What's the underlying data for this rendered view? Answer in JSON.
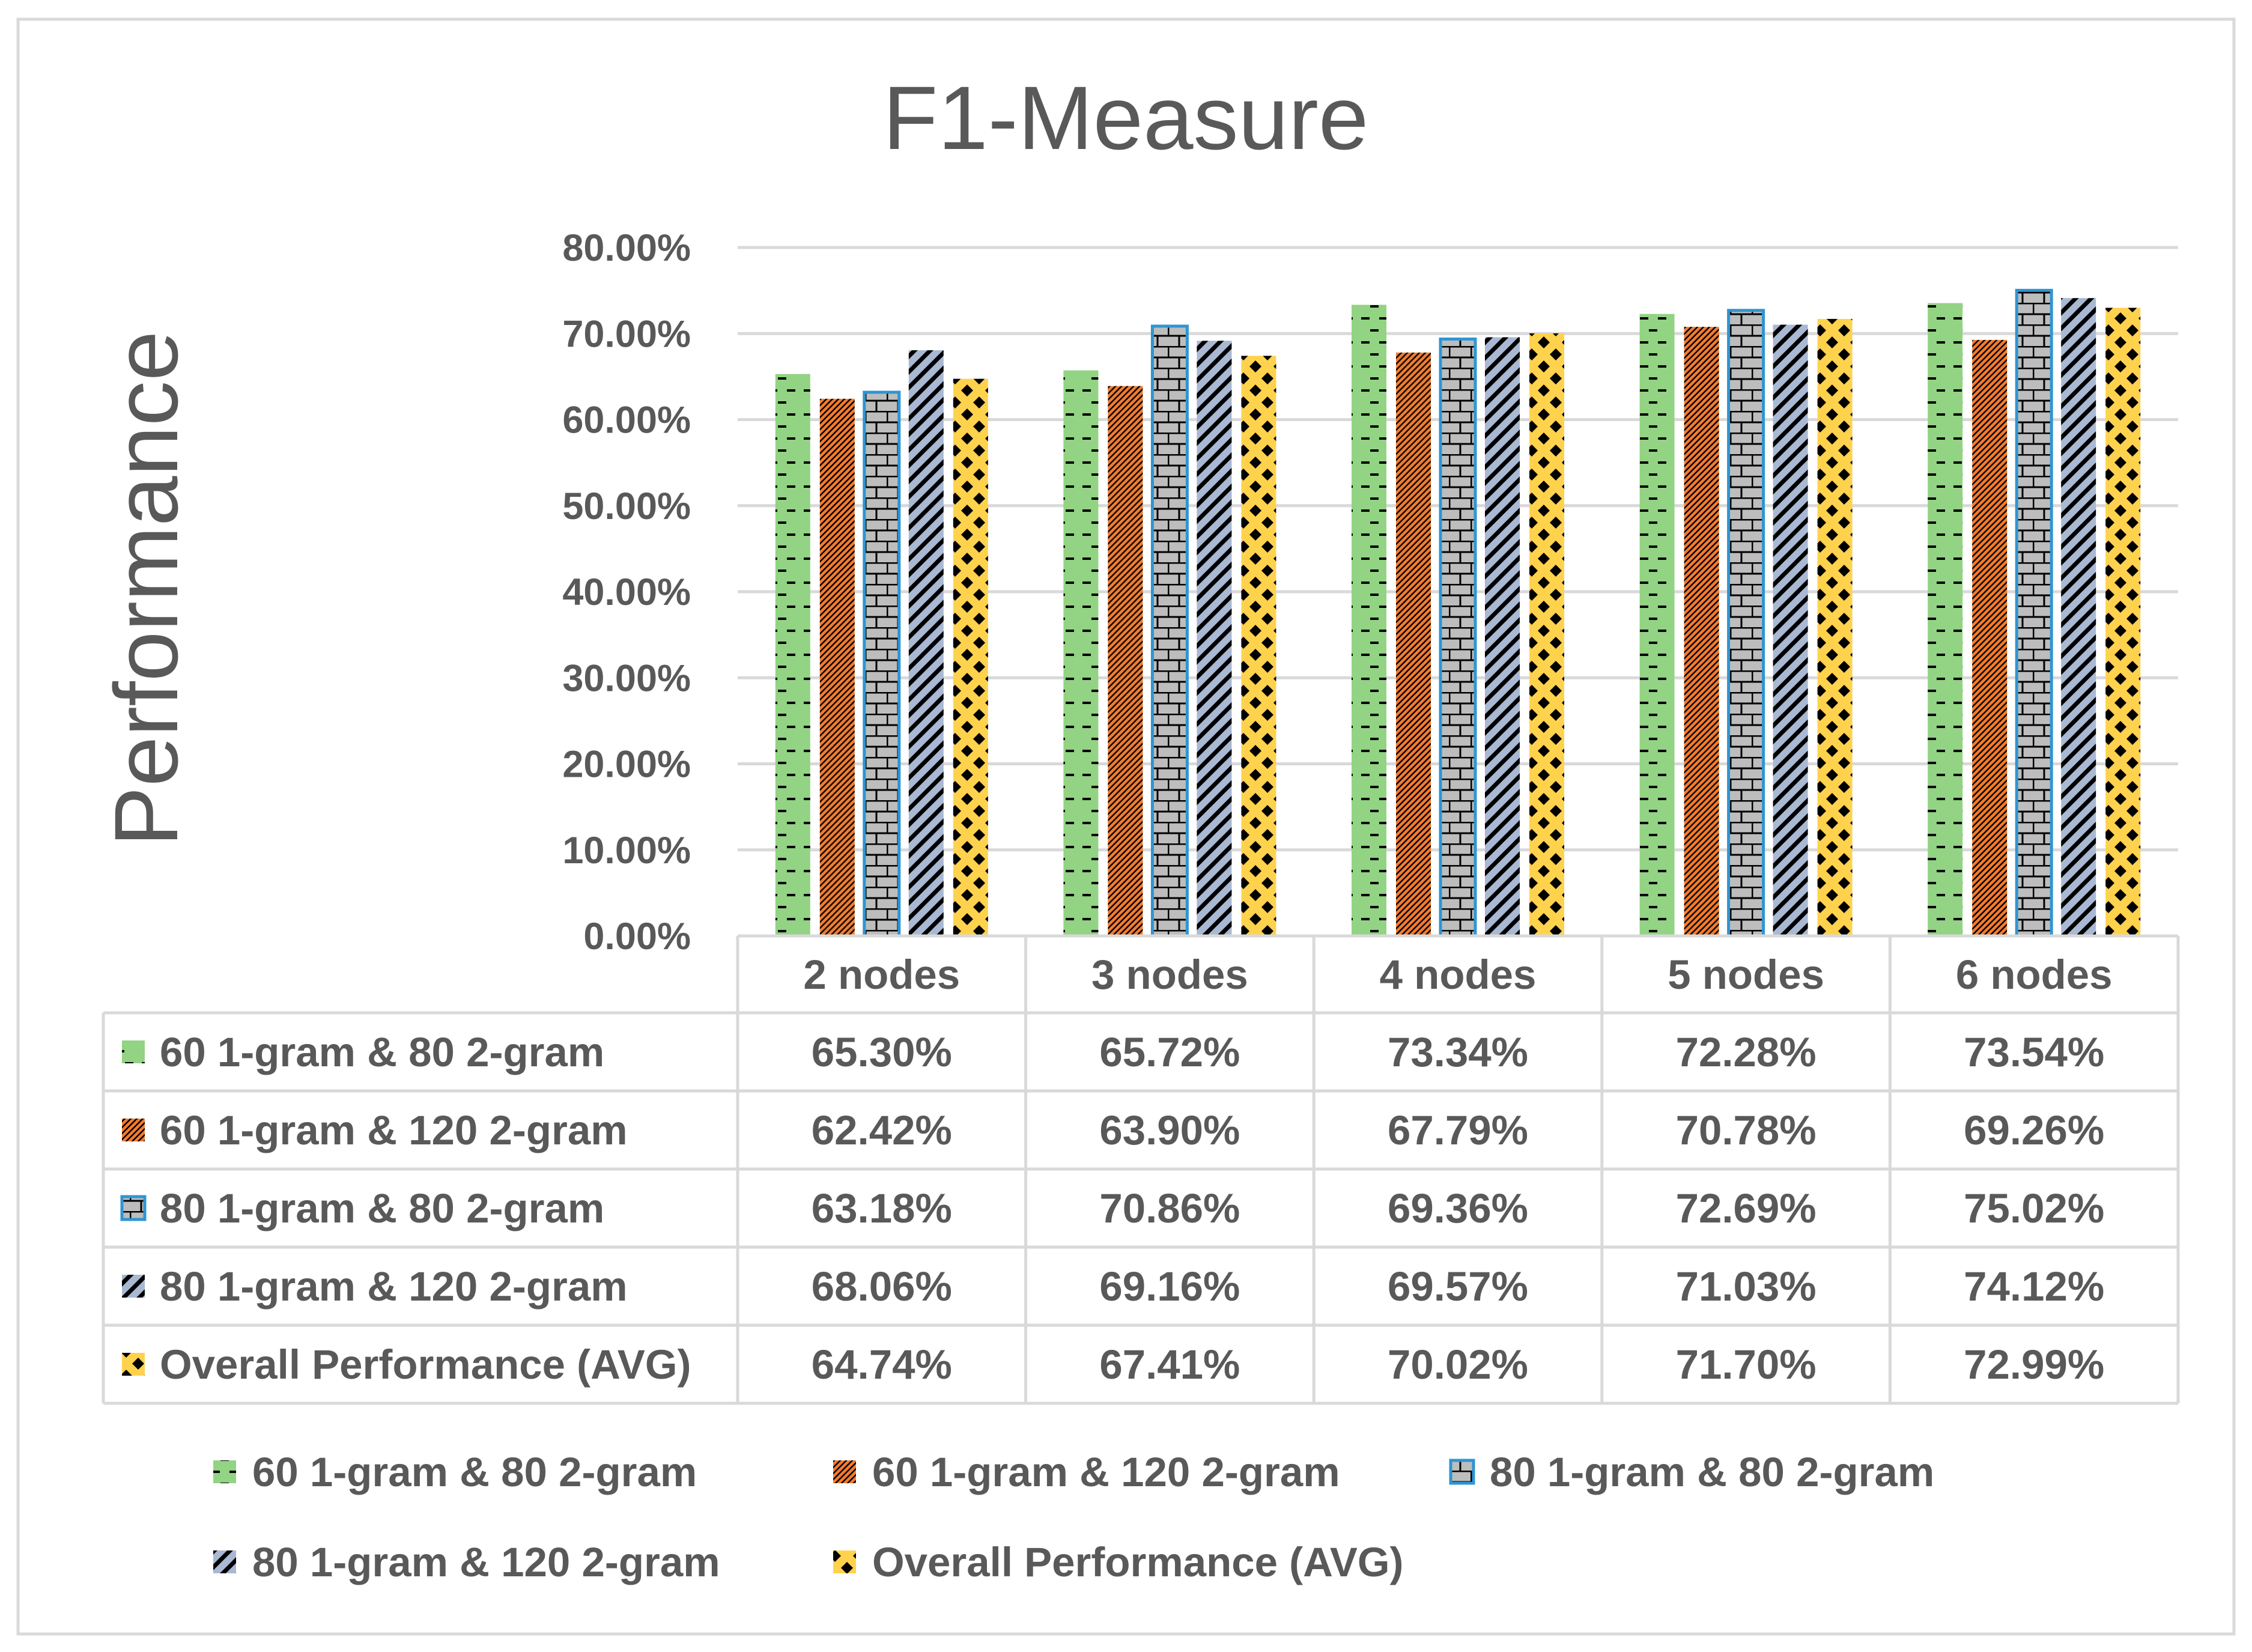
{
  "chart_data": {
    "type": "bar",
    "title": "F1-Measure",
    "ylabel": "Performance",
    "xlabel": "",
    "categories": [
      "2 nodes",
      "3 nodes",
      "4 nodes",
      "5 nodes",
      "6 nodes"
    ],
    "ylim": [
      0,
      80
    ],
    "yticks": [
      0,
      10,
      20,
      30,
      40,
      50,
      60,
      70,
      80
    ],
    "ytick_labels": [
      "0.00%",
      "10.00%",
      "20.00%",
      "30.00%",
      "40.00%",
      "50.00%",
      "60.00%",
      "70.00%",
      "80.00%"
    ],
    "grid": true,
    "legend_position": "bottom",
    "data_table": true,
    "series": [
      {
        "name": "60 1-gram & 80 2-gram",
        "values": [
          65.3,
          65.72,
          73.34,
          72.28,
          73.54
        ],
        "labels": [
          "65.30%",
          "65.72%",
          "73.34%",
          "72.28%",
          "73.54%"
        ],
        "color": "#92D384",
        "pattern": "dashes",
        "pattern_color": "#000000",
        "outline": ""
      },
      {
        "name": "60 1-gram & 120 2-gram",
        "values": [
          62.42,
          63.9,
          67.79,
          70.78,
          69.26
        ],
        "labels": [
          "62.42%",
          "63.90%",
          "67.79%",
          "70.78%",
          "69.26%"
        ],
        "color": "#F47B2C",
        "pattern": "diagonal-dense",
        "pattern_color": "#000000",
        "outline": ""
      },
      {
        "name": "80 1-gram & 80 2-gram",
        "values": [
          63.18,
          70.86,
          69.36,
          72.69,
          75.02
        ],
        "labels": [
          "63.18%",
          "70.86%",
          "69.36%",
          "72.69%",
          "75.02%"
        ],
        "color": "#BDBDBD",
        "pattern": "brick",
        "pattern_color": "#000000",
        "outline": "#2E95D3"
      },
      {
        "name": "80 1-gram & 120 2-gram",
        "values": [
          68.06,
          69.16,
          69.57,
          71.03,
          74.12
        ],
        "labels": [
          "68.06%",
          "69.16%",
          "69.57%",
          "71.03%",
          "74.12%"
        ],
        "color": "#A9B8D3",
        "pattern": "diagonal-wide",
        "pattern_color": "#000000",
        "outline": ""
      },
      {
        "name": "Overall Performance (AVG)",
        "values": [
          64.74,
          67.41,
          70.02,
          71.7,
          72.99
        ],
        "labels": [
          "64.74%",
          "67.41%",
          "70.02%",
          "71.70%",
          "72.99%"
        ],
        "color": "#FFD24D",
        "pattern": "diamonds",
        "pattern_color": "#000000",
        "outline": ""
      }
    ]
  }
}
